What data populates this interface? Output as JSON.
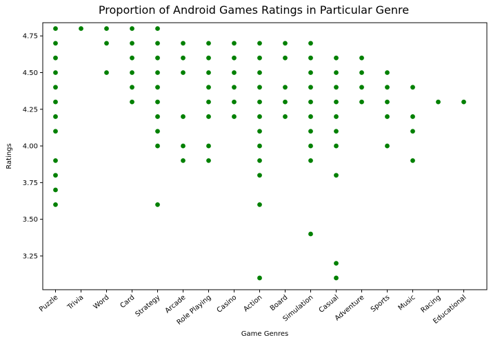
{
  "chart_data": {
    "type": "scatter",
    "title": "Proportion of Android Games Ratings in Particular Genre",
    "xlabel": "Game Genres",
    "ylabel": "Ratings",
    "categories": [
      "Puzzle",
      "Trivia",
      "Word",
      "Card",
      "Strategy",
      "Arcade",
      "Role Playing",
      "Casino",
      "Action",
      "Board",
      "Simulation",
      "Casual",
      "Adventure",
      "Sports",
      "Music",
      "Racing",
      "Educational"
    ],
    "yticks": [
      "3.25",
      "3.50",
      "3.75",
      "4.00",
      "4.25",
      "4.50",
      "4.75"
    ],
    "ylim": [
      3.02,
      4.84
    ],
    "marker_color": "#008000",
    "grid": false,
    "points": [
      {
        "category": "Puzzle",
        "values": [
          4.8,
          4.7,
          4.6,
          4.5,
          4.4,
          4.3,
          4.2,
          4.1,
          3.9,
          3.8,
          3.7,
          3.6
        ]
      },
      {
        "category": "Trivia",
        "values": [
          4.8
        ]
      },
      {
        "category": "Word",
        "values": [
          4.8,
          4.7,
          4.5
        ]
      },
      {
        "category": "Card",
        "values": [
          4.8,
          4.7,
          4.6,
          4.5,
          4.4,
          4.3
        ]
      },
      {
        "category": "Strategy",
        "values": [
          4.8,
          4.7,
          4.6,
          4.5,
          4.4,
          4.3,
          4.2,
          4.1,
          4.0,
          3.6
        ]
      },
      {
        "category": "Arcade",
        "values": [
          4.7,
          4.6,
          4.5,
          4.2,
          4.0,
          3.9
        ]
      },
      {
        "category": "Role Playing",
        "values": [
          4.7,
          4.6,
          4.5,
          4.4,
          4.3,
          4.2,
          4.0,
          3.9
        ]
      },
      {
        "category": "Casino",
        "values": [
          4.7,
          4.6,
          4.5,
          4.4,
          4.3,
          4.2
        ]
      },
      {
        "category": "Action",
        "values": [
          4.7,
          4.6,
          4.5,
          4.4,
          4.3,
          4.2,
          4.1,
          4.0,
          3.9,
          3.8,
          3.6,
          3.1
        ]
      },
      {
        "category": "Board",
        "values": [
          4.7,
          4.6,
          4.4,
          4.3,
          4.2
        ]
      },
      {
        "category": "Simulation",
        "values": [
          4.7,
          4.6,
          4.5,
          4.4,
          4.3,
          4.2,
          4.1,
          4.0,
          3.9,
          3.4
        ]
      },
      {
        "category": "Casual",
        "values": [
          4.6,
          4.5,
          4.4,
          4.3,
          4.2,
          4.1,
          4.0,
          3.8,
          3.2,
          3.1
        ]
      },
      {
        "category": "Adventure",
        "values": [
          4.6,
          4.5,
          4.4,
          4.3
        ]
      },
      {
        "category": "Sports",
        "values": [
          4.5,
          4.4,
          4.3,
          4.2,
          4.0
        ]
      },
      {
        "category": "Music",
        "values": [
          4.4,
          4.2,
          4.1,
          3.9
        ]
      },
      {
        "category": "Racing",
        "values": [
          4.3
        ]
      },
      {
        "category": "Educational",
        "values": [
          4.3
        ]
      }
    ]
  }
}
